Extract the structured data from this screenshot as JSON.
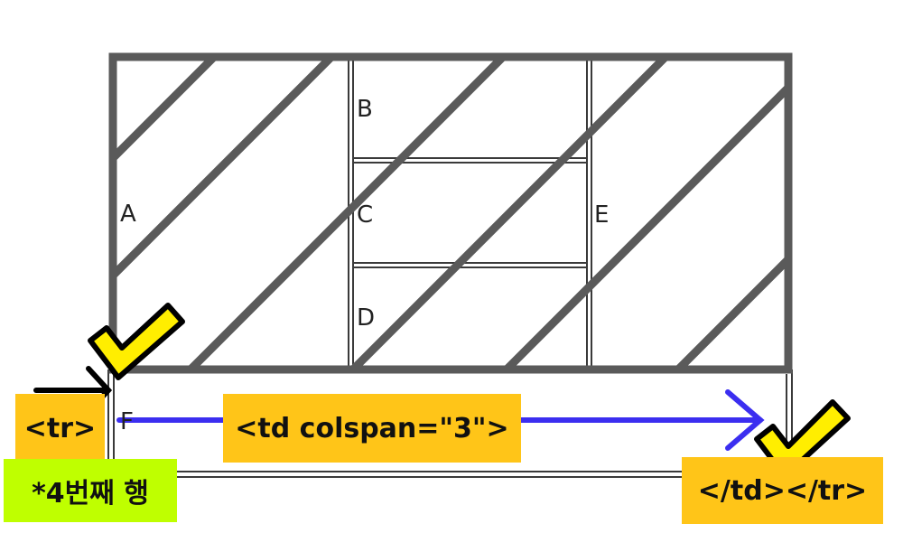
{
  "cells": {
    "a": "A",
    "b": "B",
    "c": "C",
    "d": "D",
    "e": "E",
    "f": "F"
  },
  "tags": {
    "tr_open": "<tr>",
    "td_colspan": "<td colspan=\"3\">",
    "td_tr_close": "</td></tr>"
  },
  "note": "*4번째 행",
  "colors": {
    "table_border": "#5a5a5a",
    "tag_background": "#ffc518",
    "note_background": "#bfff00",
    "arrow": "#3b2ef0",
    "check_fill": "#ffee00"
  }
}
